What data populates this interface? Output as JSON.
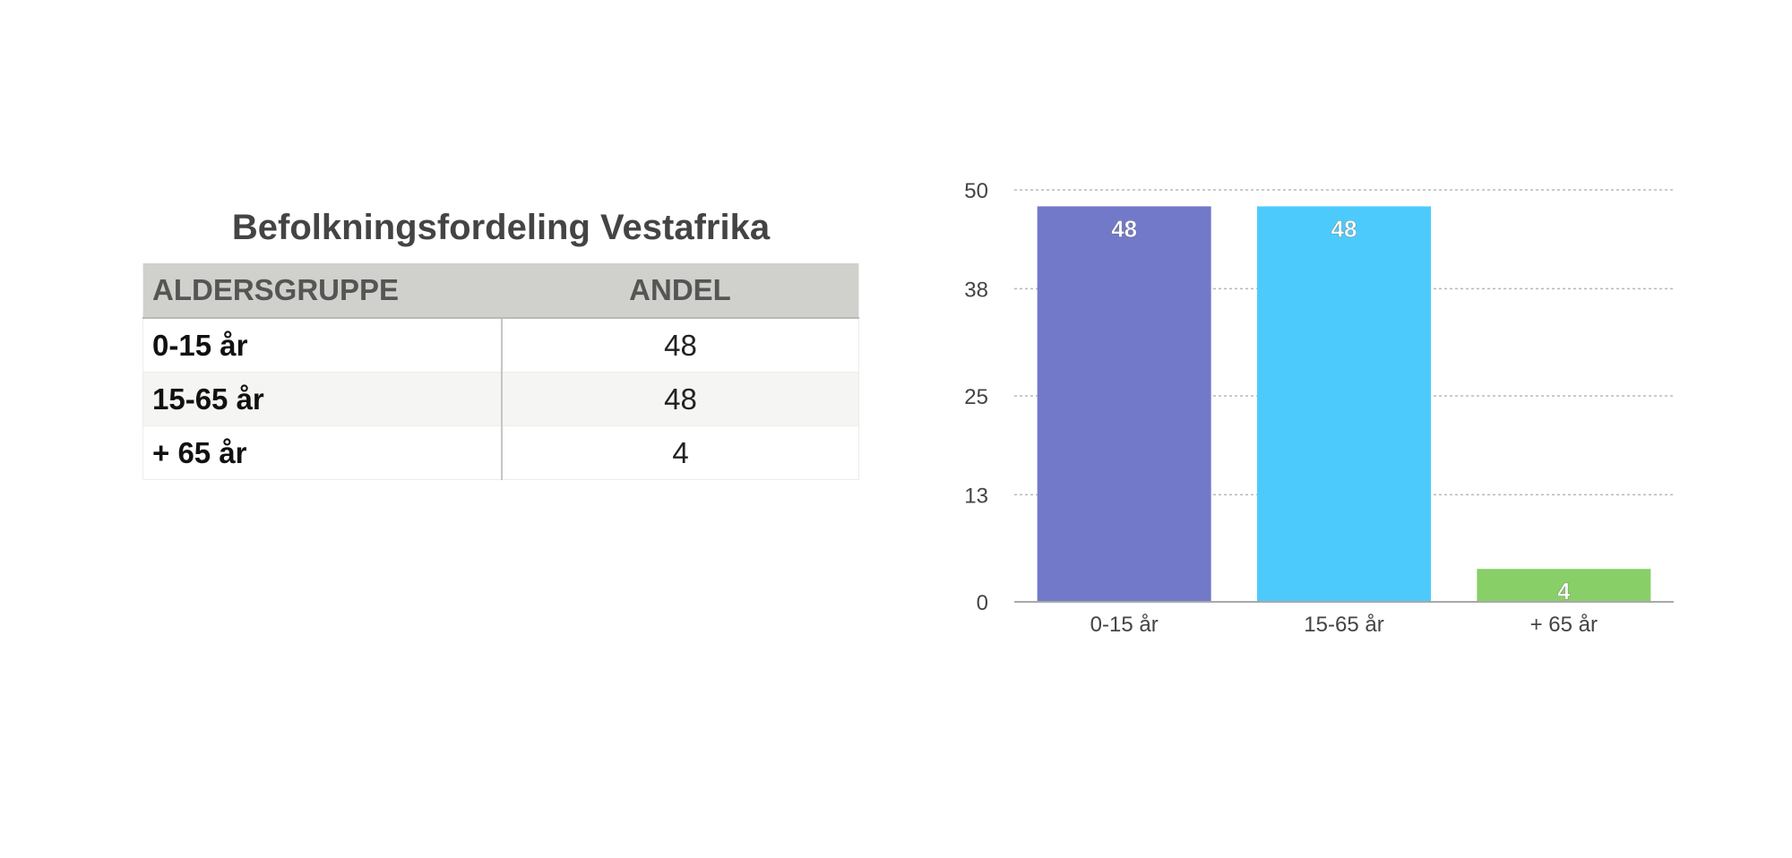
{
  "table": {
    "title": "Befolkningsfordeling Vestafrika",
    "headers": [
      "ALDERSGRUPPE",
      "ANDEL"
    ],
    "rows": [
      {
        "group": "0-15 år",
        "share": "48"
      },
      {
        "group": "15-65 år",
        "share": "48"
      },
      {
        "group": "+ 65 år",
        "share": "4"
      }
    ]
  },
  "chart_data": {
    "type": "bar",
    "categories": [
      "0-15 år",
      "15-65 år",
      "+ 65 år"
    ],
    "values": [
      48,
      48,
      4
    ],
    "data_labels": [
      "48",
      "48",
      "4"
    ],
    "colors": [
      "#7279c9",
      "#4dcafc",
      "#88cf68"
    ],
    "yticks": [
      0,
      13,
      25,
      38,
      50
    ],
    "ytick_labels": [
      "0",
      "13",
      "25",
      "38",
      "50"
    ],
    "ylim": [
      0,
      50
    ],
    "grid": true,
    "title": "",
    "xlabel": "",
    "ylabel": ""
  }
}
